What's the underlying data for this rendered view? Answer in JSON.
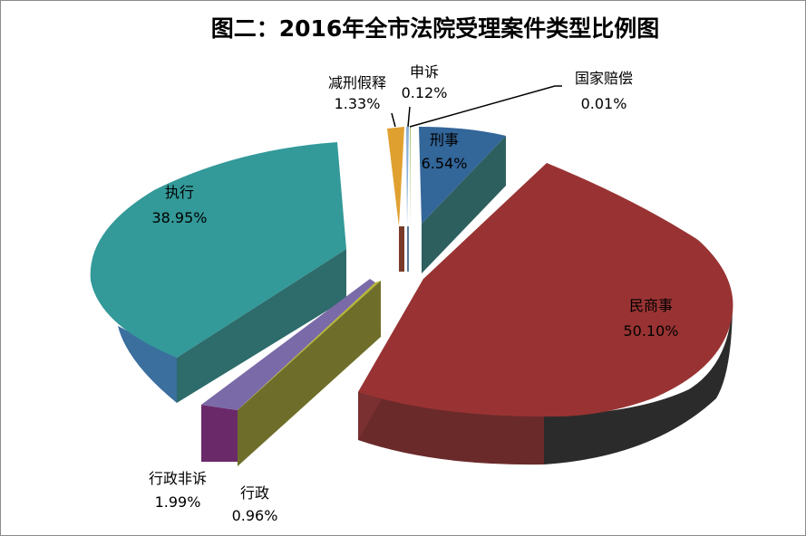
{
  "chart_data": {
    "type": "pie",
    "title": "图二：2016年全市法院受理案件类型比例图",
    "slices": [
      {
        "name": "民商事",
        "value": 50.1,
        "value_label": "50.10%",
        "color": "#993333"
      },
      {
        "name": "执行",
        "value": 38.95,
        "value_label": "38.95%",
        "color": "#339999"
      },
      {
        "name": "刑事",
        "value": 6.54,
        "value_label": "6.54%",
        "color": "#336699"
      },
      {
        "name": "行政非诉",
        "value": 1.99,
        "value_label": "1.99%",
        "color": "#7a6aa8"
      },
      {
        "name": "减刑假释",
        "value": 1.33,
        "value_label": "1.33%",
        "color": "#e0a030"
      },
      {
        "name": "行政",
        "value": 0.96,
        "value_label": "0.96%",
        "color": "#b5b532"
      },
      {
        "name": "申诉",
        "value": 0.12,
        "value_label": "0.12%",
        "color": "#8ab0d8"
      },
      {
        "name": "国家赔偿",
        "value": 0.01,
        "value_label": "0.01%",
        "color": "#a0c060"
      }
    ],
    "style": "3d-exploded-pie"
  }
}
